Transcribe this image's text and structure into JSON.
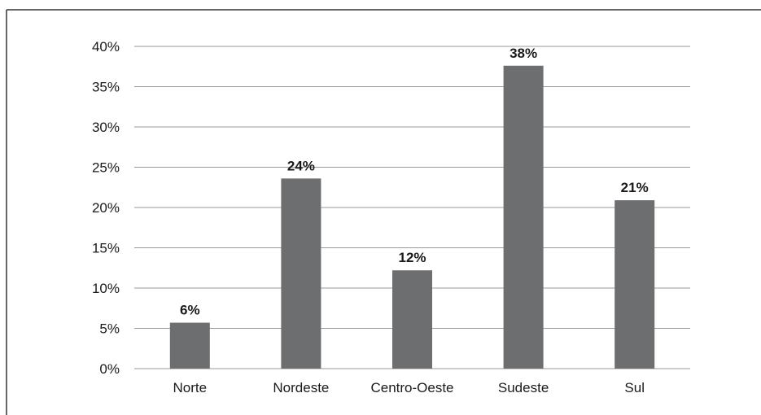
{
  "chart_data": {
    "type": "bar",
    "categories": [
      "Norte",
      "Nordeste",
      "Centro-Oeste",
      "Sudeste",
      "Sul"
    ],
    "values": [
      5.7,
      23.6,
      12.2,
      37.6,
      20.9
    ],
    "data_labels": [
      "6%",
      "24%",
      "12%",
      "38%",
      "21%"
    ],
    "title": "",
    "xlabel": "",
    "ylabel": "",
    "ylim": [
      0,
      40
    ],
    "yticks": [
      0,
      5,
      10,
      15,
      20,
      25,
      30,
      35,
      40
    ],
    "ytick_labels": [
      "0%",
      "5%",
      "10%",
      "15%",
      "20%",
      "25%",
      "30%",
      "35%",
      "40%"
    ],
    "grid": true,
    "legend": "none",
    "colors": {
      "bar": "#6d6e70",
      "grid": "#9a9a9a",
      "frame": "#333333"
    }
  }
}
